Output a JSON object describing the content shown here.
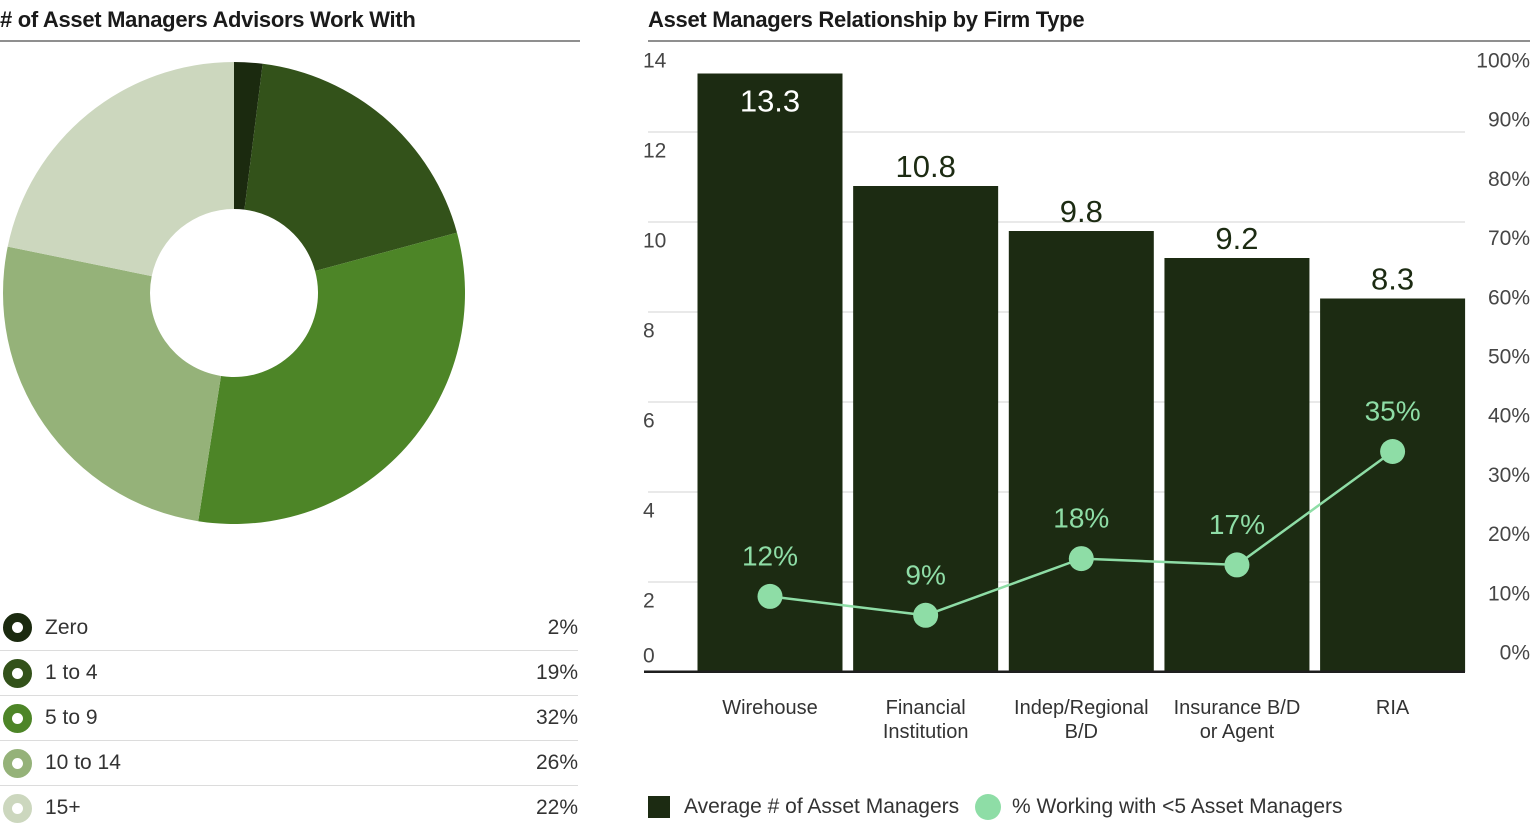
{
  "colors": {
    "bar_dark_green": "#1c2b12",
    "mint": "#8edda6",
    "axis_text": "#464646",
    "label_text": "#333333",
    "gridline": "#e2e2e2",
    "axis_line": "#1e1e1e",
    "title_rule": "#8f8f8f"
  },
  "chart_data": [
    {
      "type": "pie",
      "donut": true,
      "title": "# of Asset Managers Advisors Work With",
      "categories": [
        "Zero",
        "1 to 4",
        "5 to 9",
        "10 to 14",
        "15+"
      ],
      "values": [
        2,
        19,
        32,
        26,
        22
      ],
      "legend_values": [
        "2%",
        "19%",
        "32%",
        "26%",
        "22%"
      ],
      "colors": [
        "#1b2a0f",
        "#33521a",
        "#4d8527",
        "#95b279",
        "#ccd7be"
      ],
      "start_angle": "top, clockwise",
      "legend_position": "bottom-list"
    },
    {
      "type": "bar+line",
      "title": "Asset Managers Relationship by Firm Type",
      "categories": [
        [
          "Wirehouse"
        ],
        [
          "Financial",
          "Institution"
        ],
        [
          "Indep/Regional",
          "B/D"
        ],
        [
          "Insurance B/D",
          "or Agent"
        ],
        [
          "RIA"
        ]
      ],
      "series": [
        {
          "name": "Average # of Asset Managers",
          "type": "bar",
          "axis": "left",
          "values": [
            13.3,
            10.8,
            9.8,
            9.2,
            8.3
          ],
          "value_labels": [
            "13.3",
            "10.8",
            "9.8",
            "9.2",
            "8.3"
          ],
          "color": "#1c2b12"
        },
        {
          "name": "% Working with <5 Asset Managers",
          "type": "line",
          "axis": "right",
          "values": [
            12,
            9,
            18,
            17,
            35
          ],
          "value_labels": [
            "12%",
            "9%",
            "18%",
            "17%",
            "35%"
          ],
          "color": "#8edda6"
        }
      ],
      "left_axis": {
        "min": 0,
        "max": 14,
        "ticks": [
          "14",
          "12",
          "10",
          "8",
          "6",
          "4",
          "2",
          "0"
        ]
      },
      "right_axis": {
        "min": 0,
        "max": 100,
        "ticks": [
          "100%",
          "90%",
          "80%",
          "70%",
          "60%",
          "50%",
          "40%",
          "30%",
          "20%",
          "10%",
          "0%"
        ]
      },
      "grid": "horizontal",
      "legend_position": "bottom"
    }
  ]
}
